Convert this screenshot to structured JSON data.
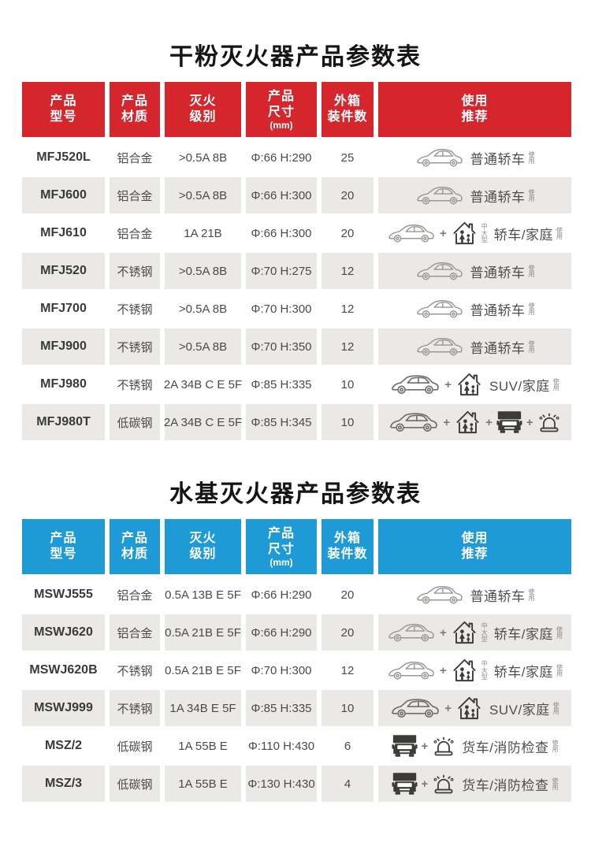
{
  "tables": [
    {
      "key": "dry-powder",
      "title": "干粉灭火器产品参数表",
      "accent_color": "#d5262d",
      "columns": [
        {
          "key": "model",
          "lines": [
            "产品",
            "型号"
          ]
        },
        {
          "key": "material",
          "lines": [
            "产品",
            "材质"
          ]
        },
        {
          "key": "rating",
          "lines": [
            "灭火",
            "级别"
          ]
        },
        {
          "key": "size",
          "lines": [
            "产品",
            "尺寸"
          ],
          "sub": "(mm)"
        },
        {
          "key": "qty",
          "lines": [
            "外箱",
            "装件数"
          ]
        },
        {
          "key": "recommend",
          "lines": [
            "使用",
            "推荐"
          ]
        }
      ],
      "rows": [
        {
          "model": "MFJ520L",
          "material": "铝合金",
          "rating": ">0.5A 8B",
          "size": "Φ:66 H:290",
          "qty": "25",
          "recommend": {
            "icons": [
              "car"
            ],
            "pre": "",
            "label": "普通轿车",
            "post": "使用"
          }
        },
        {
          "model": "MFJ600",
          "material": "铝合金",
          "rating": ">0.5A 8B",
          "size": "Φ:66 H:300",
          "qty": "20",
          "recommend": {
            "icons": [
              "car"
            ],
            "pre": "",
            "label": "普通轿车",
            "post": "使用"
          }
        },
        {
          "model": "MFJ610",
          "material": "铝合金",
          "rating": "1A 21B",
          "size": "Φ:66 H:300",
          "qty": "20",
          "recommend": {
            "icons": [
              "car",
              "house"
            ],
            "pre": "中大型",
            "label": "轿车/家庭",
            "post": "使用"
          }
        },
        {
          "model": "MFJ520",
          "material": "不锈钢",
          "rating": ">0.5A 8B",
          "size": "Φ:70 H:275",
          "qty": "12",
          "recommend": {
            "icons": [
              "car"
            ],
            "pre": "",
            "label": "普通轿车",
            "post": "使用"
          }
        },
        {
          "model": "MFJ700",
          "material": "不锈钢",
          "rating": ">0.5A 8B",
          "size": "Φ:70 H:300",
          "qty": "12",
          "recommend": {
            "icons": [
              "car"
            ],
            "pre": "",
            "label": "普通轿车",
            "post": "使用"
          }
        },
        {
          "model": "MFJ900",
          "material": "不锈钢",
          "rating": ">0.5A 8B",
          "size": "Φ:70 H:350",
          "qty": "12",
          "recommend": {
            "icons": [
              "car"
            ],
            "pre": "",
            "label": "普通轿车",
            "post": "使用"
          }
        },
        {
          "model": "MFJ980",
          "material": "不锈钢",
          "rating": "2A 34B C E 5F",
          "size": "Φ:85 H:335",
          "qty": "10",
          "recommend": {
            "icons": [
              "suv",
              "house"
            ],
            "pre": "",
            "label": "SUV/家庭",
            "post": "使用"
          }
        },
        {
          "model": "MFJ980T",
          "material": "低碳钢",
          "rating": "2A 34B C E 5F",
          "size": "Φ:85 H:345",
          "qty": "10",
          "recommend": {
            "icons": [
              "suv",
              "house",
              "truck",
              "siren"
            ],
            "pre": "",
            "label": "",
            "post": ""
          }
        }
      ]
    },
    {
      "key": "water-based",
      "title": "水基灭火器产品参数表",
      "accent_color": "#1e9ad6",
      "columns": [
        {
          "key": "model",
          "lines": [
            "产品",
            "型号"
          ]
        },
        {
          "key": "material",
          "lines": [
            "产品",
            "材质"
          ]
        },
        {
          "key": "rating",
          "lines": [
            "灭火",
            "级别"
          ]
        },
        {
          "key": "size",
          "lines": [
            "产品",
            "尺寸"
          ],
          "sub": "(mm)"
        },
        {
          "key": "qty",
          "lines": [
            "外箱",
            "装件数"
          ]
        },
        {
          "key": "recommend",
          "lines": [
            "使用",
            "推荐"
          ]
        }
      ],
      "rows": [
        {
          "model": "MSWJ555",
          "material": "铝合金",
          "rating": "0.5A 13B E 5F",
          "size": "Φ:66 H:290",
          "qty": "20",
          "recommend": {
            "icons": [
              "car"
            ],
            "pre": "",
            "label": "普通轿车",
            "post": "使用"
          }
        },
        {
          "model": "MSWJ620",
          "material": "铝合金",
          "rating": "0.5A 21B E 5F",
          "size": "Φ:66 H:290",
          "qty": "20",
          "recommend": {
            "icons": [
              "car",
              "house"
            ],
            "pre": "中大型",
            "label": "轿车/家庭",
            "post": "使用"
          }
        },
        {
          "model": "MSWJ620B",
          "material": "不锈钢",
          "rating": "0.5A 21B E 5F",
          "size": "Φ:70 H:300",
          "qty": "12",
          "recommend": {
            "icons": [
              "car",
              "house"
            ],
            "pre": "中大型",
            "label": "轿车/家庭",
            "post": "使用"
          }
        },
        {
          "model": "MSWJ999",
          "material": "不锈钢",
          "rating": "1A 34B E 5F",
          "size": "Φ:85 H:335",
          "qty": "10",
          "recommend": {
            "icons": [
              "suv",
              "house"
            ],
            "pre": "",
            "label": "SUV/家庭",
            "post": "使用"
          }
        },
        {
          "model": "MSZ/2",
          "material": "低碳钢",
          "rating": "1A 55B E",
          "size": "Φ:110 H:430",
          "qty": "6",
          "recommend": {
            "icons": [
              "truck",
              "siren"
            ],
            "pre": "",
            "label": "货车/消防检查",
            "post": "使用"
          }
        },
        {
          "model": "MSZ/3",
          "material": "低碳钢",
          "rating": "1A 55B E",
          "size": "Φ:130 H:430",
          "qty": "4",
          "recommend": {
            "icons": [
              "truck",
              "siren"
            ],
            "pre": "",
            "label": "货车/消防检查",
            "post": "使用"
          }
        }
      ]
    }
  ],
  "icons": {
    "car": "sedan-car-icon",
    "suv": "suv-car-icon",
    "house": "house-family-icon",
    "truck": "truck-icon",
    "siren": "siren-beacon-icon"
  },
  "colors": {
    "dry_powder_accent": "#d5262d",
    "water_based_accent": "#1e9ad6",
    "alt_row_bg": "#eae9e5",
    "title_text": "#151515",
    "cell_text": "#4c4a46"
  }
}
